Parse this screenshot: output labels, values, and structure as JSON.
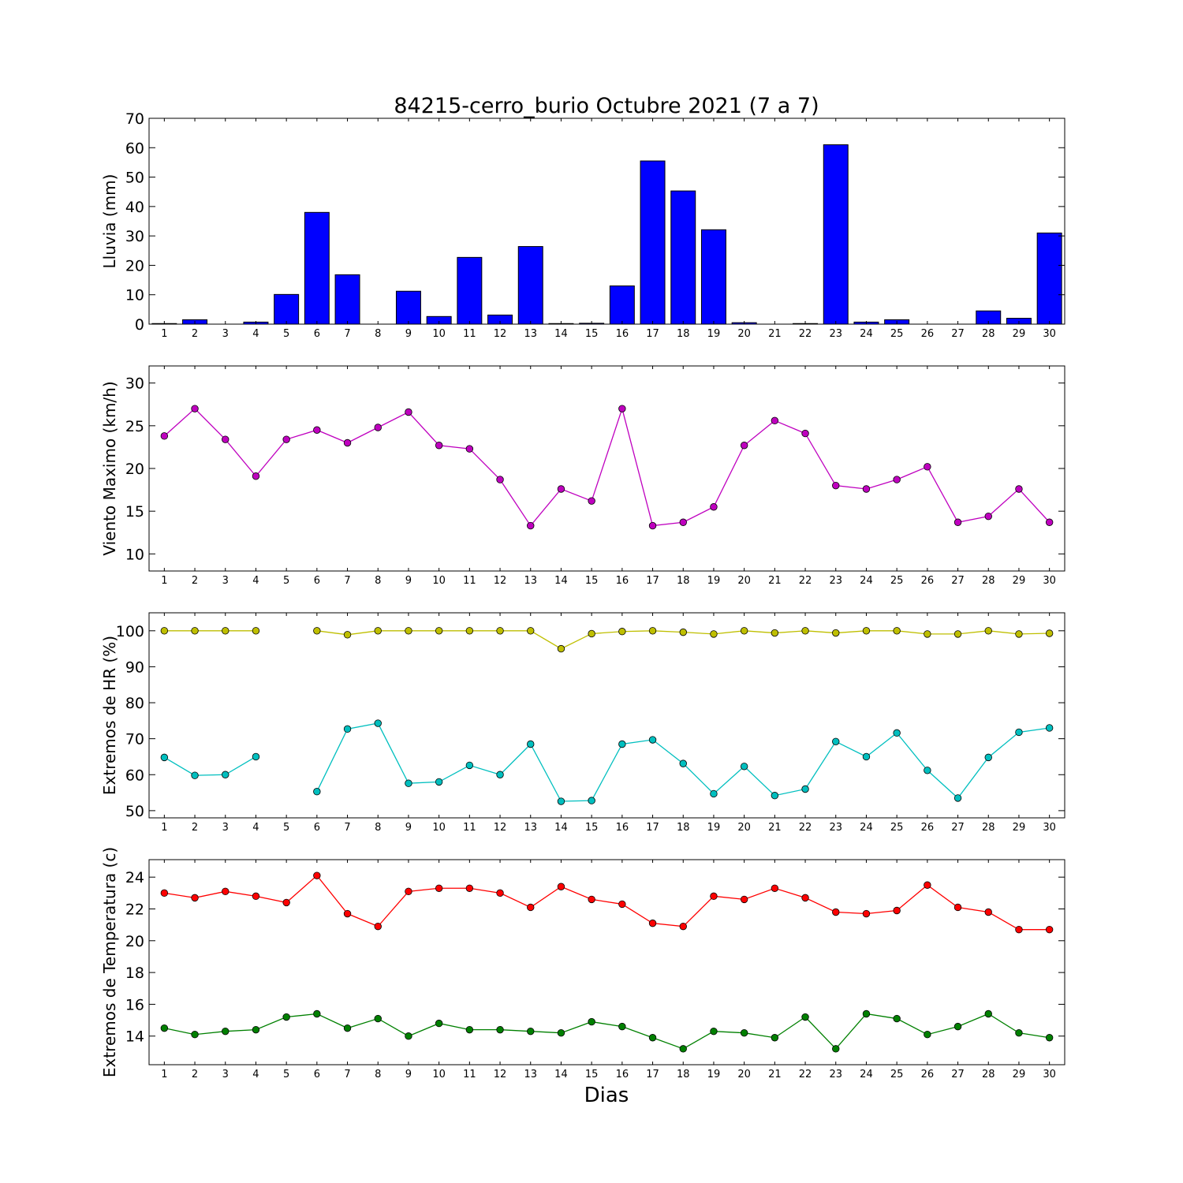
{
  "figure": {
    "title": "84215-cerro_burio Octubre 2021  (7 a 7)",
    "xlabel": "Dias"
  },
  "chart_data": [
    {
      "type": "bar",
      "ylabel": "Lluvia (mm)",
      "ylim": [
        0,
        70
      ],
      "yticks": [
        0,
        10,
        20,
        30,
        40,
        50,
        60,
        70
      ],
      "xlim": [
        0.5,
        30.5
      ],
      "categories": [
        1,
        2,
        3,
        4,
        5,
        6,
        7,
        8,
        9,
        10,
        11,
        12,
        13,
        14,
        15,
        16,
        17,
        18,
        19,
        20,
        21,
        22,
        23,
        24,
        25,
        26,
        27,
        28,
        29,
        30
      ],
      "values": [
        0.2,
        1.5,
        0,
        0.7,
        10.1,
        38.0,
        16.8,
        0,
        11.2,
        2.6,
        22.7,
        3.1,
        26.4,
        0.2,
        0.3,
        13.0,
        55.5,
        45.3,
        32.1,
        0.5,
        0,
        0.2,
        61.0,
        0.7,
        1.5,
        0,
        0,
        4.5,
        2.0,
        31.0
      ],
      "color": "#0000ff"
    },
    {
      "type": "line",
      "ylabel": "Viento Maximo (km/h)",
      "ylim": [
        8,
        32
      ],
      "yticks": [
        10,
        15,
        20,
        25,
        30
      ],
      "xlim": [
        0.5,
        30.5
      ],
      "x": [
        1,
        2,
        3,
        4,
        5,
        6,
        7,
        8,
        9,
        10,
        11,
        12,
        13,
        14,
        15,
        16,
        17,
        18,
        19,
        20,
        21,
        22,
        23,
        24,
        25,
        26,
        27,
        28,
        29,
        30
      ],
      "series": [
        {
          "color": "#bf00bf",
          "values": [
            23.8,
            27.0,
            23.4,
            19.1,
            23.4,
            24.5,
            23.0,
            24.8,
            26.6,
            22.7,
            22.3,
            18.7,
            13.3,
            17.6,
            16.2,
            27.0,
            13.3,
            13.7,
            15.5,
            22.7,
            25.6,
            24.1,
            18.0,
            17.6,
            18.7,
            20.2,
            13.7,
            14.4,
            17.6,
            13.7
          ]
        }
      ]
    },
    {
      "type": "line",
      "ylabel": "Extremos de HR (%)",
      "ylim": [
        48,
        105
      ],
      "yticks": [
        50,
        60,
        70,
        80,
        90,
        100
      ],
      "xlim": [
        0.5,
        30.5
      ],
      "x": [
        1,
        2,
        3,
        4,
        5,
        6,
        7,
        8,
        9,
        10,
        11,
        12,
        13,
        14,
        15,
        16,
        17,
        18,
        19,
        20,
        21,
        22,
        23,
        24,
        25,
        26,
        27,
        28,
        29,
        30
      ],
      "series": [
        {
          "color": "#bfbf00",
          "values": [
            100,
            100,
            100,
            100,
            null,
            100,
            98.9,
            100,
            100,
            100,
            100,
            100,
            100,
            95.0,
            99.2,
            99.8,
            100,
            99.6,
            99.1,
            100,
            99.4,
            100,
            99.4,
            100,
            100,
            99.1,
            99.1,
            100,
            99.1,
            99.3
          ]
        },
        {
          "color": "#00bfbf",
          "values": [
            64.8,
            59.8,
            60.0,
            65.0,
            null,
            55.3,
            72.7,
            74.3,
            57.6,
            58.0,
            62.6,
            60.0,
            68.5,
            52.6,
            52.8,
            68.5,
            69.7,
            63.1,
            54.7,
            62.3,
            54.2,
            56.0,
            69.2,
            65.0,
            71.6,
            61.2,
            53.5,
            64.8,
            71.8,
            73.0
          ]
        }
      ]
    },
    {
      "type": "line",
      "ylabel": "Extremos de Temperatura (c)",
      "ylim": [
        12.2,
        25.1
      ],
      "yticks": [
        14,
        16,
        18,
        20,
        22,
        24
      ],
      "xlim": [
        0.5,
        30.5
      ],
      "x": [
        1,
        2,
        3,
        4,
        5,
        6,
        7,
        8,
        9,
        10,
        11,
        12,
        13,
        14,
        15,
        16,
        17,
        18,
        19,
        20,
        21,
        22,
        23,
        24,
        25,
        26,
        27,
        28,
        29,
        30
      ],
      "series": [
        {
          "color": "#ff0000",
          "values": [
            23.0,
            22.7,
            23.1,
            22.8,
            22.4,
            24.1,
            21.7,
            20.9,
            23.1,
            23.3,
            23.3,
            23.0,
            22.1,
            23.4,
            22.6,
            22.3,
            21.1,
            20.9,
            22.8,
            22.6,
            23.3,
            22.7,
            21.8,
            21.7,
            21.9,
            23.5,
            22.1,
            21.8,
            20.7,
            20.7
          ]
        },
        {
          "color": "#008000",
          "values": [
            14.5,
            14.1,
            14.3,
            14.4,
            15.2,
            15.4,
            14.5,
            15.1,
            14.0,
            14.8,
            14.4,
            14.4,
            14.3,
            14.2,
            14.9,
            14.6,
            13.9,
            13.2,
            14.3,
            14.2,
            13.9,
            15.2,
            13.2,
            15.4,
            15.1,
            14.1,
            14.6,
            15.4,
            14.2,
            13.9
          ]
        }
      ]
    }
  ]
}
